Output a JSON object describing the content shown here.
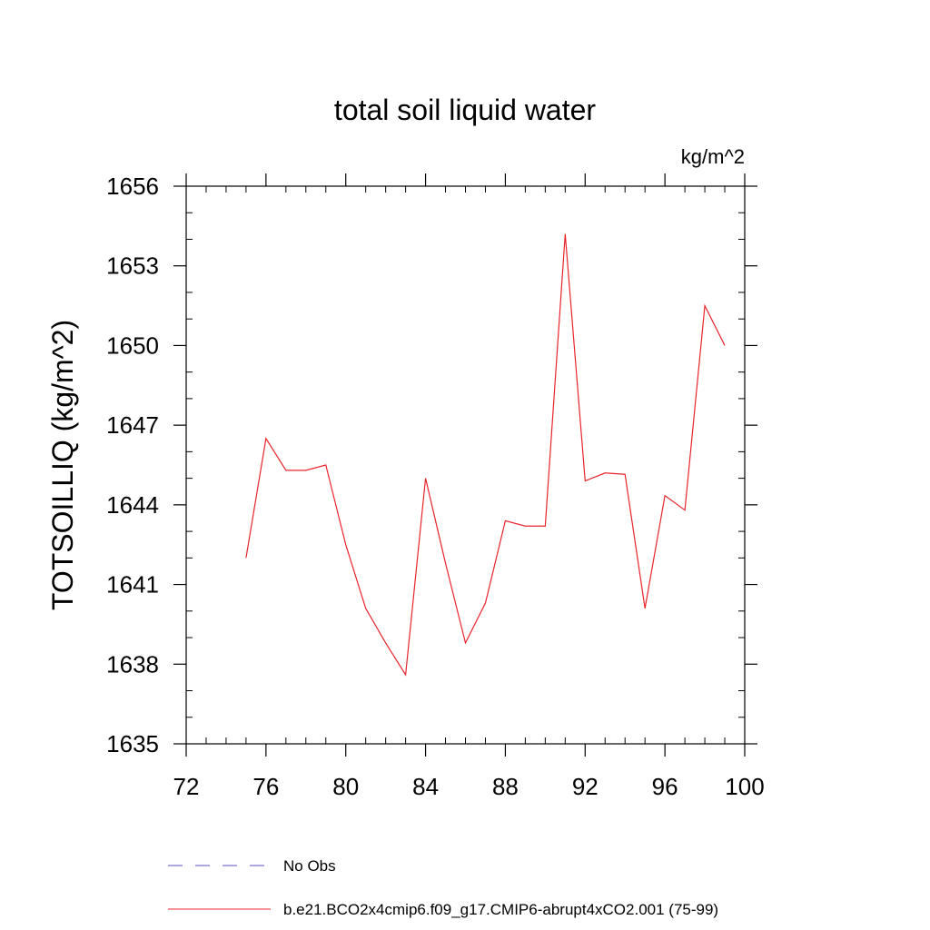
{
  "chart_data": {
    "type": "line",
    "title": "total soil liquid water",
    "units_label": "kg/m^2",
    "xlabel": "",
    "ylabel": "TOTSOILLIQ  (kg/m^2)",
    "xlim": [
      72,
      100
    ],
    "ylim": [
      1635,
      1656
    ],
    "x_ticks": [
      72,
      76,
      80,
      84,
      88,
      92,
      96,
      100
    ],
    "y_ticks": [
      1635,
      1638,
      1641,
      1644,
      1647,
      1650,
      1653,
      1656
    ],
    "x_minor_step": 1,
    "y_minor_step": 1,
    "series": [
      {
        "name": "No Obs",
        "color": "#5b4fbf",
        "style": "dashed",
        "x": [],
        "values": []
      },
      {
        "name": "b.e21.BCO2x4cmip6.f09_g17.CMIP6-abrupt4xCO2.001 (75-99)",
        "color": "#e8242b",
        "style": "solid",
        "x": [
          75,
          76,
          77,
          78,
          79,
          80,
          81,
          82,
          83,
          84,
          85,
          86,
          87,
          88,
          89,
          90,
          91,
          92,
          93,
          94,
          95,
          96,
          97,
          98,
          99
        ],
        "values": [
          1642.0,
          1646.5,
          1645.3,
          1645.3,
          1645.5,
          1642.5,
          1640.1,
          1638.8,
          1637.6,
          1645.0,
          1641.8,
          1638.8,
          1640.3,
          1643.4,
          1643.2,
          1643.2,
          1654.2,
          1644.9,
          1645.2,
          1645.15,
          1640.1,
          1644.35,
          1643.8,
          1651.5,
          1650.0
        ]
      }
    ]
  }
}
